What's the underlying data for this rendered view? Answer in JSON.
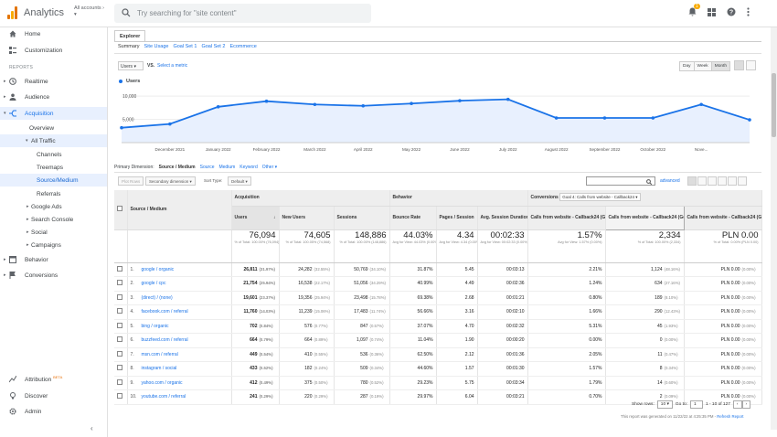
{
  "app": {
    "title": "Analytics",
    "account": "All accounts",
    "search_placeholder": "Try searching for \"site content\"",
    "notif_count": "1"
  },
  "sidebar": {
    "home": "Home",
    "customization": "Customization",
    "reports_header": "REPORTS",
    "realtime": "Realtime",
    "audience": "Audience",
    "acquisition": "Acquisition",
    "overview": "Overview",
    "all_traffic": "All Traffic",
    "channels": "Channels",
    "treemaps": "Treemaps",
    "source_medium": "Source/Medium",
    "referrals": "Referrals",
    "google_ads": "Google Ads",
    "search_console": "Search Console",
    "social": "Social",
    "campaigns": "Campaigns",
    "behavior": "Behavior",
    "conversions": "Conversions",
    "attribution": "Attribution",
    "beta": "BETA",
    "discover": "Discover",
    "admin": "Admin"
  },
  "explorer": {
    "tab": "Explorer",
    "subtabs": [
      "Summary",
      "Site Usage",
      "Goal Set 1",
      "Goal Set 2",
      "Ecommerce"
    ],
    "metric": "Users",
    "vs": "VS.",
    "select_metric": "Select a metric",
    "periods": [
      "Day",
      "Week",
      "Month"
    ]
  },
  "chart_data": {
    "type": "line",
    "series": [
      {
        "name": "Users",
        "values": [
          3200,
          4000,
          7700,
          8900,
          8200,
          7900,
          8400,
          9000,
          9300,
          5300,
          5300,
          5300,
          8200,
          4900
        ]
      }
    ],
    "x": [
      "",
      "December 2021",
      "January 2022",
      "February 2022",
      "March 2022",
      "April 2022",
      "May 2022",
      "June 2022",
      "July 2022",
      "August 2022",
      "September 2022",
      "October 2022",
      "Nove...",
      ""
    ],
    "y_ticks": [
      "10,000",
      "5,000"
    ],
    "ylim": [
      0,
      11000
    ],
    "color": "#1a73e8"
  },
  "primary_dimension": {
    "label": "Primary Dimension:",
    "current": "Source / Medium",
    "options": [
      "Source",
      "Medium",
      "Keyword",
      "Other"
    ]
  },
  "controls": {
    "plot_rows": "Plot Rows",
    "secondary": "Secondary dimension",
    "sort_label": "Sort Type:",
    "sort": "Default",
    "advanced": "advanced"
  },
  "table": {
    "groups": {
      "acquisition": "Acquisition",
      "behavior": "Behavior",
      "conversions": "Conversions",
      "goal_select": "Goal 4: Calls from website - Callback24"
    },
    "headers": {
      "source": "Source / Medium",
      "users": "Users",
      "new_users": "New Users",
      "sessions": "Sessions",
      "bounce": "Bounce Rate",
      "pages": "Pages / Session",
      "duration": "Avg. Session Duration",
      "conv_rate": "Calls from website - Callback24 (Goal 4 Conversion Rate)",
      "completions": "Calls from website - Callback24 (Goal 4 Completions)",
      "value": "Calls from website - Callback24 (Goal 4 Value)"
    },
    "totals": {
      "users": "76,094",
      "users_sub": "% of Total: 100.00% (76,094)",
      "new_users": "74,605",
      "new_users_sub": "% of Total: 100.05% (74,568)",
      "sessions": "148,886",
      "sessions_sub": "% of Total: 100.00% (148,886)",
      "bounce": "44.03%",
      "bounce_sub": "Avg for View: 44.03% (0.00%)",
      "pages": "4.34",
      "pages_sub": "Avg for View: 4.34 (0.00%)",
      "duration": "00:02:33",
      "duration_sub": "Avg for View: 00:02:33 (0.00%)",
      "conv_rate": "1.57%",
      "conv_rate_sub": "Avg for View: 1.57% (0.00%)",
      "completions": "2,334",
      "completions_sub": "% of Total: 100.00% (2,334)",
      "value": "PLN 0.00",
      "value_sub": "% of Total: 0.00% (PLN 0.00)"
    },
    "rows": [
      {
        "n": "1.",
        "src": "google / organic",
        "users": "26,811",
        "users_p": "(31.97%)",
        "new": "24,282",
        "new_p": "(32.55%)",
        "sess": "50,769",
        "sess_p": "(34.10%)",
        "bounce": "31.87%",
        "pages": "5.45",
        "dur": "00:03:13",
        "cr": "2.21%",
        "comp": "1,124",
        "comp_p": "(48.16%)",
        "val": "PLN 0.00",
        "val_p": "(0.00%)"
      },
      {
        "n": "2.",
        "src": "google / cpc",
        "users": "21,754",
        "users_p": "(25.94%)",
        "new": "16,538",
        "new_p": "(22.17%)",
        "sess": "51,056",
        "sess_p": "(34.29%)",
        "bounce": "40.99%",
        "pages": "4.49",
        "dur": "00:02:36",
        "cr": "1.24%",
        "comp": "634",
        "comp_p": "(27.16%)",
        "val": "PLN 0.00",
        "val_p": "(0.00%)"
      },
      {
        "n": "3.",
        "src": "(direct) / (none)",
        "users": "19,601",
        "users_p": "(23.37%)",
        "new": "19,356",
        "new_p": "(25.94%)",
        "sess": "23,498",
        "sess_p": "(15.78%)",
        "bounce": "69.38%",
        "pages": "2.68",
        "dur": "00:01:21",
        "cr": "0.80%",
        "comp": "189",
        "comp_p": "(8.10%)",
        "val": "PLN 0.00",
        "val_p": "(0.00%)"
      },
      {
        "n": "4.",
        "src": "facebook.com / referral",
        "users": "11,760",
        "users_p": "(14.03%)",
        "new": "11,239",
        "new_p": "(15.06%)",
        "sess": "17,483",
        "sess_p": "(11.74%)",
        "bounce": "56.66%",
        "pages": "3.16",
        "dur": "00:02:10",
        "cr": "1.66%",
        "comp": "290",
        "comp_p": "(12.43%)",
        "val": "PLN 0.00",
        "val_p": "(0.00%)"
      },
      {
        "n": "5.",
        "src": "bing / organic",
        "users": "702",
        "users_p": "(0.84%)",
        "new": "576",
        "new_p": "(0.77%)",
        "sess": "847",
        "sess_p": "(0.57%)",
        "bounce": "37.07%",
        "pages": "4.70",
        "dur": "00:02:32",
        "cr": "5.31%",
        "comp": "45",
        "comp_p": "(1.93%)",
        "val": "PLN 0.00",
        "val_p": "(0.00%)"
      },
      {
        "n": "6.",
        "src": "buzzfeed.com / referral",
        "users": "664",
        "users_p": "(0.79%)",
        "new": "664",
        "new_p": "(0.89%)",
        "sess": "1,097",
        "sess_p": "(0.74%)",
        "bounce": "11.04%",
        "pages": "1.90",
        "dur": "00:00:20",
        "cr": "0.00%",
        "comp": "0",
        "comp_p": "(0.00%)",
        "val": "PLN 0.00",
        "val_p": "(0.00%)"
      },
      {
        "n": "7.",
        "src": "msn.com / referral",
        "users": "449",
        "users_p": "(0.54%)",
        "new": "410",
        "new_p": "(0.55%)",
        "sess": "536",
        "sess_p": "(0.36%)",
        "bounce": "62.50%",
        "pages": "2.12",
        "dur": "00:01:36",
        "cr": "2.05%",
        "comp": "11",
        "comp_p": "(0.47%)",
        "val": "PLN 0.00",
        "val_p": "(0.00%)"
      },
      {
        "n": "8.",
        "src": "instagram / social",
        "users": "433",
        "users_p": "(0.52%)",
        "new": "182",
        "new_p": "(0.24%)",
        "sess": "509",
        "sess_p": "(0.34%)",
        "bounce": "44.60%",
        "pages": "1.57",
        "dur": "00:01:30",
        "cr": "1.57%",
        "comp": "8",
        "comp_p": "(0.34%)",
        "val": "PLN 0.00",
        "val_p": "(0.00%)"
      },
      {
        "n": "9.",
        "src": "yahoo.com / organic",
        "users": "412",
        "users_p": "(0.49%)",
        "new": "375",
        "new_p": "(0.50%)",
        "sess": "780",
        "sess_p": "(0.52%)",
        "bounce": "29.23%",
        "pages": "5.75",
        "dur": "00:03:34",
        "cr": "1.79%",
        "comp": "14",
        "comp_p": "(0.60%)",
        "val": "PLN 0.00",
        "val_p": "(0.00%)"
      },
      {
        "n": "10.",
        "src": "youtube.com / referral",
        "users": "241",
        "users_p": "(0.29%)",
        "new": "220",
        "new_p": "(0.29%)",
        "sess": "287",
        "sess_p": "(0.19%)",
        "bounce": "29.97%",
        "pages": "6.04",
        "dur": "00:03:21",
        "cr": "0.70%",
        "comp": "2",
        "comp_p": "(0.09%)",
        "val": "PLN 0.00",
        "val_p": "(0.00%)"
      }
    ]
  },
  "pager": {
    "show_rows": "Show rows:",
    "rows": "10",
    "goto": "Go to:",
    "page": "1",
    "range": "1 - 10 of 127"
  },
  "footnote": {
    "text": "This report was generated on 11/22/22 at 4:25:35 PM -",
    "link": "Refresh Report"
  }
}
